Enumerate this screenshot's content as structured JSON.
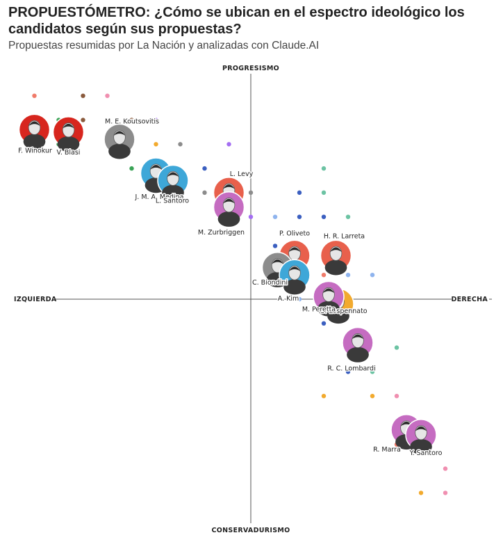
{
  "header": {
    "title": "PROPUESTÓMETRO: ¿Cómo se ubican en el espectro ideológico los candidatos según sus propuestas?",
    "subtitle": "Propuestas resumidas por La Nación y analizadas con Claude.AI"
  },
  "chart_data": {
    "type": "scatter",
    "axes": {
      "top": "PROGRESISMO",
      "bottom": "CONSERVADURISMO",
      "left": "IZQUIERDA",
      "right": "DERECHA",
      "xlim": [
        -10,
        10
      ],
      "ylim": [
        -10,
        10
      ],
      "grid": false
    },
    "candidates": [
      {
        "name": "F. Winokur",
        "x": -8.9,
        "y": 7.0,
        "color": "#d7261e"
      },
      {
        "name": "V. Blasi",
        "x": -7.5,
        "y": 6.9,
        "color": "#d7261e"
      },
      {
        "name": "M. E. Koutsovitis",
        "x": -5.4,
        "y": 6.6,
        "color": "#8c8c8c"
      },
      {
        "name": "J. M. A. Medina",
        "x": -3.9,
        "y": 5.2,
        "color": "#3ea7d8"
      },
      {
        "name": "L. Santoro",
        "x": -3.2,
        "y": 4.9,
        "color": "#3ea7d8"
      },
      {
        "name": "L. Levy",
        "x": -0.9,
        "y": 4.4,
        "color": "#e8604c"
      },
      {
        "name": "M. Zurbriggen",
        "x": -0.9,
        "y": 3.8,
        "color": "#c56cc1"
      },
      {
        "name": "P. Oliveto",
        "x": 1.8,
        "y": 1.8,
        "color": "#e8604c"
      },
      {
        "name": "H. R. Larreta",
        "x": 3.5,
        "y": 1.8,
        "color": "#e8604c"
      },
      {
        "name": "C. Biondini",
        "x": 1.1,
        "y": 1.3,
        "color": "#8c8c8c"
      },
      {
        "name": "A. Kim",
        "x": 1.8,
        "y": 1.0,
        "color": "#3ea7d8"
      },
      {
        "name": "S. Lospennato",
        "x": 3.6,
        "y": -0.2,
        "color": "#f2aa2e"
      },
      {
        "name": "M. Peretta",
        "x": 3.2,
        "y": 0.1,
        "color": "#c56cc1"
      },
      {
        "name": "R. C. Lombardi",
        "x": 4.4,
        "y": -1.8,
        "color": "#c56cc1"
      },
      {
        "name": "R. Marra",
        "x": 6.4,
        "y": -5.4,
        "color": "#c56cc1"
      },
      {
        "name": "Y. Santoro",
        "x": 7.0,
        "y": -5.6,
        "color": "#c56cc1"
      }
    ],
    "points": [
      {
        "x": -8.9,
        "y": 8.4,
        "color": "#f07b6a"
      },
      {
        "x": -6.9,
        "y": 8.4,
        "color": "#8a5a3c"
      },
      {
        "x": -5.9,
        "y": 8.4,
        "color": "#f08fb0"
      },
      {
        "x": -7.9,
        "y": 7.4,
        "color": "#3aa356"
      },
      {
        "x": -6.9,
        "y": 7.4,
        "color": "#8a5a3c"
      },
      {
        "x": -4.9,
        "y": 7.4,
        "color": "#8a5a3c"
      },
      {
        "x": -3.9,
        "y": 7.4,
        "color": "#a46ef2"
      },
      {
        "x": -8.9,
        "y": 6.4,
        "color": "#f07b6a"
      },
      {
        "x": -7.9,
        "y": 6.4,
        "color": "#3aa356"
      },
      {
        "x": -4.9,
        "y": 6.4,
        "color": "#f08fb0"
      },
      {
        "x": -3.9,
        "y": 6.4,
        "color": "#f2aa2e"
      },
      {
        "x": -2.9,
        "y": 6.4,
        "color": "#8c8c8c"
      },
      {
        "x": -0.9,
        "y": 6.4,
        "color": "#a46ef2"
      },
      {
        "x": -4.9,
        "y": 5.4,
        "color": "#3aa356"
      },
      {
        "x": -1.9,
        "y": 5.4,
        "color": "#3b5fc0"
      },
      {
        "x": 3.0,
        "y": 5.4,
        "color": "#6cc3a3"
      },
      {
        "x": -1.9,
        "y": 4.4,
        "color": "#8c8c8c"
      },
      {
        "x": 0.0,
        "y": 4.4,
        "color": "#8c8c8c"
      },
      {
        "x": 2.0,
        "y": 4.4,
        "color": "#3b5fc0"
      },
      {
        "x": 3.0,
        "y": 4.4,
        "color": "#6cc3a3"
      },
      {
        "x": -0.9,
        "y": 3.4,
        "color": "#f2aa2e"
      },
      {
        "x": 0.0,
        "y": 3.4,
        "color": "#a46ef2"
      },
      {
        "x": 1.0,
        "y": 3.4,
        "color": "#8fb4ee"
      },
      {
        "x": 2.0,
        "y": 3.4,
        "color": "#3b5fc0"
      },
      {
        "x": 3.0,
        "y": 3.4,
        "color": "#3b5fc0"
      },
      {
        "x": 4.0,
        "y": 3.4,
        "color": "#6cc3a3"
      },
      {
        "x": 1.0,
        "y": 2.2,
        "color": "#3b5fc0"
      },
      {
        "x": 3.0,
        "y": 1.0,
        "color": "#f07b6a"
      },
      {
        "x": 4.0,
        "y": 1.0,
        "color": "#8fb4ee"
      },
      {
        "x": 5.0,
        "y": 1.0,
        "color": "#8fb4ee"
      },
      {
        "x": 2.0,
        "y": 0.0,
        "color": "#8fb4ee"
      },
      {
        "x": 3.0,
        "y": -1.0,
        "color": "#3b5fc0"
      },
      {
        "x": 6.0,
        "y": -2.0,
        "color": "#6cc3a3"
      },
      {
        "x": 4.0,
        "y": -3.0,
        "color": "#3b5fc0"
      },
      {
        "x": 5.0,
        "y": -3.0,
        "color": "#6cc3a3"
      },
      {
        "x": 3.0,
        "y": -4.0,
        "color": "#f2aa2e"
      },
      {
        "x": 5.0,
        "y": -4.0,
        "color": "#f2aa2e"
      },
      {
        "x": 6.0,
        "y": -4.0,
        "color": "#f08fb0"
      },
      {
        "x": 6.0,
        "y": -6.0,
        "color": "#f07b6a"
      },
      {
        "x": 8.0,
        "y": -7.0,
        "color": "#f08fb0"
      },
      {
        "x": 7.0,
        "y": -8.0,
        "color": "#f2aa2e"
      },
      {
        "x": 8.0,
        "y": -8.0,
        "color": "#f08fb0"
      }
    ]
  }
}
